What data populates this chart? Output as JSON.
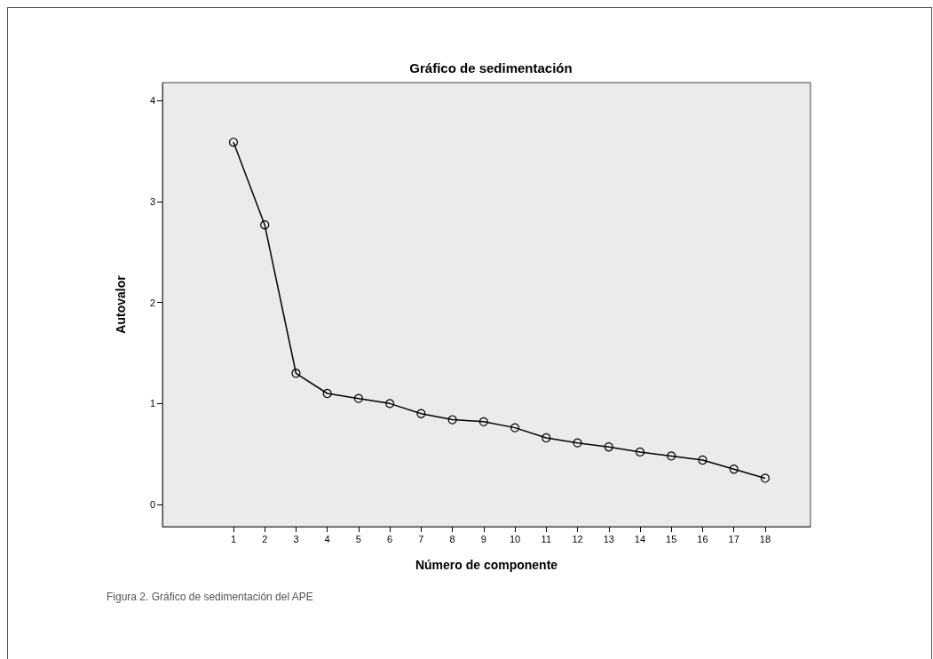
{
  "chart_data": {
    "type": "line",
    "title": "Gráfico de sedimentación",
    "xlabel": "Número de componente",
    "ylabel": "Autovalor",
    "annotations": [
      "Figura 2. Gráfico de sedimentación del APE"
    ],
    "x": [
      1,
      2,
      3,
      4,
      5,
      6,
      7,
      8,
      9,
      10,
      11,
      12,
      13,
      14,
      15,
      16,
      17,
      18
    ],
    "series": [
      {
        "color": "#000000",
        "values": [
          3.59,
          2.77,
          1.3,
          1.1,
          1.05,
          1.0,
          0.9,
          0.84,
          0.82,
          0.76,
          0.66,
          0.61,
          0.57,
          0.52,
          0.48,
          0.44,
          0.35,
          0.26
        ]
      }
    ],
    "xlim": [
      -1.27,
      19.45
    ],
    "xticks": [
      1,
      2,
      3,
      4,
      5,
      6,
      7,
      8,
      9,
      10,
      11,
      12,
      13,
      14,
      15,
      16,
      17,
      18
    ],
    "ylim": [
      -0.22,
      4.18
    ],
    "yticks": [
      0,
      1,
      2,
      3,
      4
    ],
    "grid": false,
    "marker": "circle",
    "line_style": "solid"
  }
}
